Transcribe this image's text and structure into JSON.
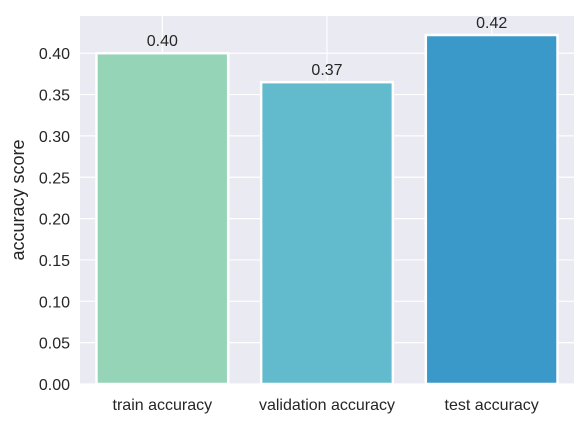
{
  "chart_data": {
    "type": "bar",
    "title": "",
    "xlabel": "",
    "ylabel": "accuracy score",
    "categories": [
      "train accuracy",
      "validation accuracy",
      "test accuracy"
    ],
    "values": [
      0.4,
      0.365,
      0.422
    ],
    "value_labels": [
      "0.40",
      "0.37",
      "0.42"
    ],
    "bar_colors": [
      "#96d4b8",
      "#62bbcc",
      "#3a99c8"
    ],
    "ylim": [
      0,
      0.445
    ],
    "yticks": [
      0.0,
      0.05,
      0.1,
      0.15,
      0.2,
      0.25,
      0.3,
      0.35,
      0.4
    ],
    "ytick_labels": [
      "0.00",
      "0.05",
      "0.10",
      "0.15",
      "0.20",
      "0.25",
      "0.30",
      "0.35",
      "0.40"
    ],
    "grid": true,
    "background_color": "#eaeaf2",
    "grid_color": "#ffffff"
  }
}
